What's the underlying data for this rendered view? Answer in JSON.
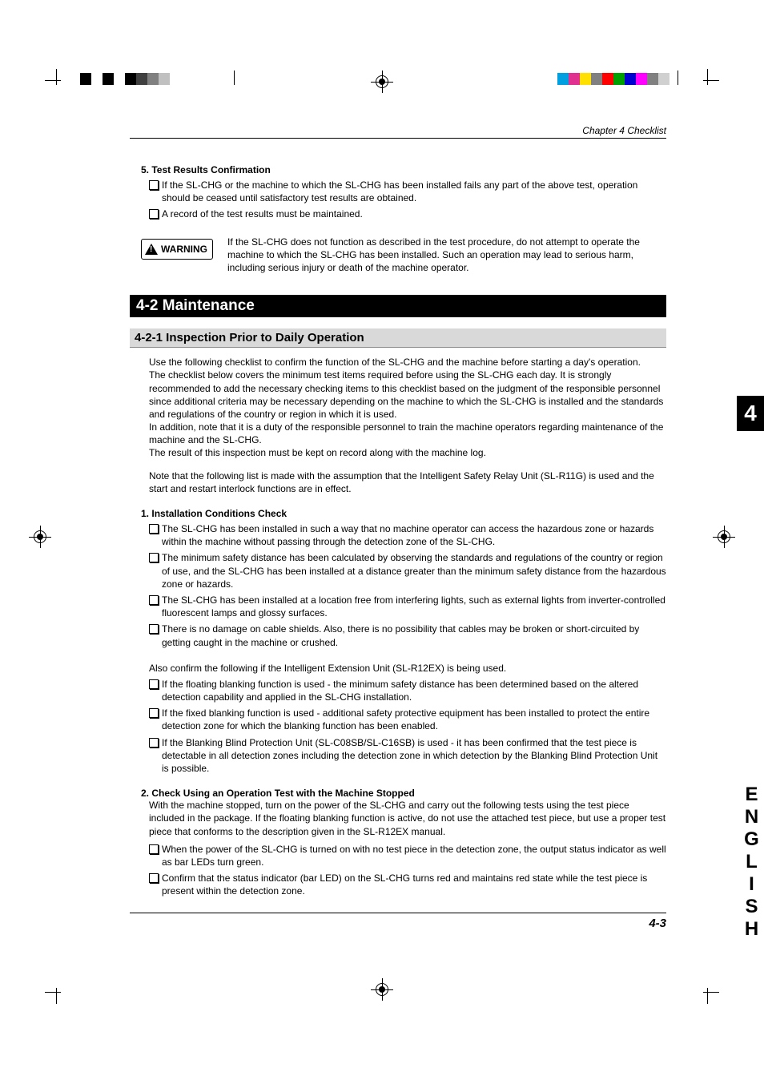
{
  "chapter_header": "Chapter 4  Checklist",
  "page_number": "4-3",
  "chapter_tab": "4",
  "language_tab": "ENGLISH",
  "section5": {
    "num": "5.",
    "title": "Test Results Confirmation",
    "checks": [
      "If the SL-CHG or the machine to which the SL-CHG has been installed fails any part of the above test, operation should be ceased until satisfactory test results are obtained.",
      "A record of the test results must be maintained."
    ]
  },
  "warning": {
    "label": "WARNING",
    "text": "If the SL-CHG does not function as described in the test procedure, do not attempt to operate the machine to which the SL-CHG has been installed. Such an operation may lead to serious harm, including serious injury or death of the machine operator."
  },
  "section_bar": "4-2 Maintenance",
  "subsection_bar": "4-2-1 Inspection Prior to Daily Operation",
  "intro_paras": [
    "Use the following checklist to confirm the function of the SL-CHG and the machine before starting a day's operation.",
    "The checklist below covers the minimum test items required before using the SL-CHG each day. It is strongly recommended to add the necessary checking items to this checklist based on the judgment of the responsible personnel since additional criteria may be necessary depending on the machine to which the SL-CHG is installed and the standards and regulations of the country or region in which it is used.",
    "In addition, note that it is a duty of the responsible personnel to train the machine operators regarding maintenance of the machine and the SL-CHG.",
    "The result of this inspection must be kept on record along with the machine log.",
    "",
    "Note that the following list is made with the assumption that the Intelligent Safety Relay Unit (SL-R11G) is used and the start and restart interlock functions are in effect."
  ],
  "item1": {
    "num": "1.",
    "title": "Installation Conditions Check",
    "checks": [
      "The SL-CHG has been installed in such a way that no machine operator can access the hazardous zone or hazards within the machine without passing through the detection zone of the SL-CHG.",
      "The minimum safety distance has been calculated by observing the standards and regulations of the country or region of use, and the SL-CHG has been installed at a distance greater than the minimum safety distance from the hazardous zone or hazards.",
      "The SL-CHG has been installed at a location free from interfering lights, such as external lights from inverter-controlled fluorescent lamps and glossy surfaces.",
      "There is no damage on cable shields.  Also, there is no possibility that cables may be broken or short-circuited by getting caught in the machine or crushed."
    ],
    "also_confirm": "Also confirm the following if the Intelligent Extension Unit (SL-R12EX) is being used.",
    "checks2": [
      "If the floating blanking function is used - the minimum safety distance has been determined based on the altered detection capability and applied in the SL-CHG installation.",
      "If the fixed blanking function is used - additional safety protective equipment has been installed to protect the entire detection zone for which the blanking function has been enabled.",
      "If the Blanking Blind Protection Unit (SL-C08SB/SL-C16SB) is used - it has been confirmed that the test piece is detectable in all detection zones including the detection zone in which detection by the Blanking Blind Protection Unit is possible."
    ]
  },
  "item2": {
    "num": "2.",
    "title": "Check Using an Operation Test with the Machine Stopped",
    "intro": "With the machine stopped, turn on the power of the SL-CHG and carry out the following tests using the test piece included in the package.  If the floating blanking function is active, do not use the attached test piece, but use a proper test piece that conforms to the description given in the SL-R12EX manual.",
    "checks": [
      "When the power of the SL-CHG is turned on with no test piece in the detection zone, the output status indicator as well as bar LEDs turn green.",
      "Confirm that the status indicator (bar LED) on the SL-CHG turns red and maintains red state while the test piece is present within the detection zone."
    ]
  },
  "reg_colors_left": [
    "#000000",
    "#ffffff",
    "#000000",
    "#ffffff",
    "#000000",
    "#404040",
    "#808080",
    "#c0c0c0",
    "#ffffff",
    "#ffffff",
    "#ffffff",
    "#ffffff",
    "#ffffff"
  ],
  "reg_colors_right": [
    "#ffffff",
    "#00a0e0",
    "#e03090",
    "#ffe000",
    "#808080",
    "#ff0000",
    "#00a000",
    "#0000d0",
    "#ff00ff",
    "#808080",
    "#d0d0d0"
  ]
}
